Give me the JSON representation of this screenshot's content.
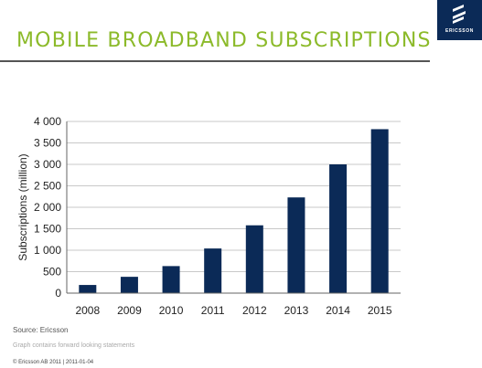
{
  "header": {
    "title": "MOBILE BROADBAND SUBSCRIPTIONS",
    "logo_text": "ERICSSON",
    "title_color": "#8cba2a",
    "logo_color": "#0b2a57"
  },
  "chart_data": {
    "type": "bar",
    "categories": [
      "2008",
      "2009",
      "2010",
      "2011",
      "2012",
      "2013",
      "2014",
      "2015"
    ],
    "values": [
      190,
      380,
      630,
      1040,
      1580,
      2230,
      3000,
      3820
    ],
    "ylabel": "Subscriptions (million)",
    "ylim": [
      0,
      4000
    ],
    "yticks": [
      0,
      500,
      1000,
      1500,
      2000,
      2500,
      3000,
      3500,
      4000
    ],
    "ytick_labels": [
      "0",
      "500",
      "1 000",
      "1 500",
      "2 000",
      "2 500",
      "3 000",
      "3 500",
      "4 000"
    ],
    "grid": true,
    "bar_color": "#0b2a57"
  },
  "footer": {
    "source": "Source: Ericsson",
    "note": "Graph contains forward looking statements",
    "copyright": "© Ericsson AB 2011  |  2011-01-04"
  }
}
